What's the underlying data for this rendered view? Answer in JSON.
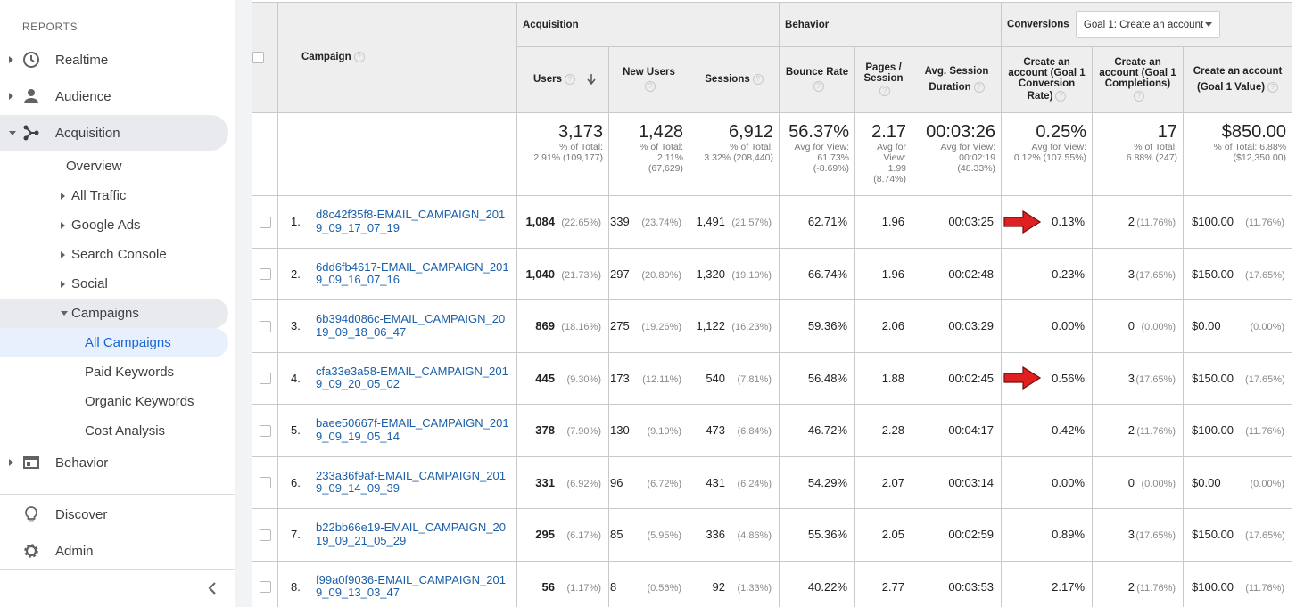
{
  "sidebar": {
    "section_label": "REPORTS",
    "top_items": [
      {
        "label": "Realtime",
        "icon": "clock-icon"
      },
      {
        "label": "Audience",
        "icon": "person-icon"
      },
      {
        "label": "Acquisition",
        "icon": "acquisition-icon"
      }
    ],
    "acquisition_sub": {
      "overview": "Overview",
      "all_traffic": "All Traffic",
      "google_ads": "Google Ads",
      "search_console": "Search Console",
      "social": "Social",
      "campaigns": "Campaigns",
      "campaign_children": [
        "All Campaigns",
        "Paid Keywords",
        "Organic Keywords",
        "Cost Analysis"
      ]
    },
    "behavior": {
      "label": "Behavior",
      "icon": "browser-window-icon"
    },
    "discover": {
      "label": "Discover",
      "icon": "lightbulb-icon"
    },
    "admin": {
      "label": "Admin",
      "icon": "gear-icon"
    }
  },
  "table": {
    "groups": {
      "acquisition": "Acquisition",
      "behavior": "Behavior",
      "conversions": "Conversions",
      "goal_select": "Goal 1: Create an account"
    },
    "columns": {
      "campaign": "Campaign",
      "users": "Users",
      "new_users": "New Users",
      "sessions": "Sessions",
      "bounce_rate": "Bounce Rate",
      "pages_session_1": "Pages /",
      "pages_session_2": "Session",
      "avg_session_1": "Avg. Session",
      "avg_session_2": "Duration",
      "conv_rate_1": "Create an",
      "conv_rate_2": "account (Goal 1",
      "conv_rate_3": "Conversion",
      "conv_rate_4": "Rate)",
      "completions_1": "Create an",
      "completions_2": "account (Goal 1",
      "completions_3": "Completions)",
      "value_1": "Create an account",
      "value_2": "(Goal 1 Value)"
    },
    "totals": {
      "users": {
        "big": "3,173",
        "l1": "% of Total:",
        "l2": "2.91% (109,177)"
      },
      "new_users": {
        "big": "1,428",
        "l1": "% of Total:",
        "l2": "2.11%",
        "l3": "(67,629)"
      },
      "sessions": {
        "big": "6,912",
        "l1": "% of Total:",
        "l2": "3.32% (208,440)"
      },
      "bounce_rate": {
        "big": "56.37%",
        "l1": "Avg for View:",
        "l2": "61.73%",
        "l3": "(-8.69%)"
      },
      "pages_session": {
        "big": "2.17",
        "l1": "Avg for",
        "l2": "View:",
        "l3": "1.99",
        "l4": "(8.74%)"
      },
      "avg_duration": {
        "big": "00:03:26",
        "l1": "Avg for View:",
        "l2": "00:02:19",
        "l3": "(48.33%)"
      },
      "conv_rate": {
        "big": "0.25%",
        "l1": "Avg for View:",
        "l2": "0.12% (107.55%)"
      },
      "completions": {
        "big": "17",
        "l1": "% of Total:",
        "l2": "6.88% (247)"
      },
      "value": {
        "big": "$850.00",
        "l1": "% of Total: 6.88%",
        "l2": "($12,350.00)"
      }
    },
    "rows": [
      {
        "idx": "1.",
        "campaign": "d8c42f35f8-EMAIL_CAMPAIGN_2019_09_17_07_19",
        "users": "1,084",
        "users_pct": "(22.65%)",
        "new_users": "339",
        "new_users_pct": "(23.74%)",
        "sessions": "1,491",
        "sessions_pct": "(21.57%)",
        "bounce": "62.71%",
        "pages": "1.96",
        "duration": "00:03:25",
        "conv": "0.13%",
        "comp": "2",
        "comp_pct": "(11.76%)",
        "value": "$100.00",
        "value_pct": "(11.76%)",
        "arrow": true
      },
      {
        "idx": "2.",
        "campaign": "6dd6fb4617-EMAIL_CAMPAIGN_2019_09_16_07_16",
        "users": "1,040",
        "users_pct": "(21.73%)",
        "new_users": "297",
        "new_users_pct": "(20.80%)",
        "sessions": "1,320",
        "sessions_pct": "(19.10%)",
        "bounce": "66.74%",
        "pages": "1.96",
        "duration": "00:02:48",
        "conv": "0.23%",
        "comp": "3",
        "comp_pct": "(17.65%)",
        "value": "$150.00",
        "value_pct": "(17.65%)",
        "arrow": false
      },
      {
        "idx": "3.",
        "campaign": "6b394d086c-EMAIL_CAMPAIGN_2019_09_18_06_47",
        "users": "869",
        "users_pct": "(18.16%)",
        "new_users": "275",
        "new_users_pct": "(19.26%)",
        "sessions": "1,122",
        "sessions_pct": "(16.23%)",
        "bounce": "59.36%",
        "pages": "2.06",
        "duration": "00:03:29",
        "conv": "0.00%",
        "comp": "0",
        "comp_pct": "(0.00%)",
        "value": "$0.00",
        "value_pct": "(0.00%)",
        "arrow": false
      },
      {
        "idx": "4.",
        "campaign": "cfa33e3a58-EMAIL_CAMPAIGN_2019_09_20_05_02",
        "users": "445",
        "users_pct": "(9.30%)",
        "new_users": "173",
        "new_users_pct": "(12.11%)",
        "sessions": "540",
        "sessions_pct": "(7.81%)",
        "bounce": "56.48%",
        "pages": "1.88",
        "duration": "00:02:45",
        "conv": "0.56%",
        "comp": "3",
        "comp_pct": "(17.65%)",
        "value": "$150.00",
        "value_pct": "(17.65%)",
        "arrow": true
      },
      {
        "idx": "5.",
        "campaign": "baee50667f-EMAIL_CAMPAIGN_2019_09_19_05_14",
        "users": "378",
        "users_pct": "(7.90%)",
        "new_users": "130",
        "new_users_pct": "(9.10%)",
        "sessions": "473",
        "sessions_pct": "(6.84%)",
        "bounce": "46.72%",
        "pages": "2.28",
        "duration": "00:04:17",
        "conv": "0.42%",
        "comp": "2",
        "comp_pct": "(11.76%)",
        "value": "$100.00",
        "value_pct": "(11.76%)",
        "arrow": false
      },
      {
        "idx": "6.",
        "campaign": "233a36f9af-EMAIL_CAMPAIGN_2019_09_14_09_39",
        "users": "331",
        "users_pct": "(6.92%)",
        "new_users": "96",
        "new_users_pct": "(6.72%)",
        "sessions": "431",
        "sessions_pct": "(6.24%)",
        "bounce": "54.29%",
        "pages": "2.07",
        "duration": "00:03:14",
        "conv": "0.00%",
        "comp": "0",
        "comp_pct": "(0.00%)",
        "value": "$0.00",
        "value_pct": "(0.00%)",
        "arrow": false
      },
      {
        "idx": "7.",
        "campaign": "b22bb66e19-EMAIL_CAMPAIGN_2019_09_21_05_29",
        "users": "295",
        "users_pct": "(6.17%)",
        "new_users": "85",
        "new_users_pct": "(5.95%)",
        "sessions": "336",
        "sessions_pct": "(4.86%)",
        "bounce": "55.36%",
        "pages": "2.05",
        "duration": "00:02:59",
        "conv": "0.89%",
        "comp": "3",
        "comp_pct": "(17.65%)",
        "value": "$150.00",
        "value_pct": "(17.65%)",
        "arrow": false
      },
      {
        "idx": "8.",
        "campaign": "f99a0f9036-EMAIL_CAMPAIGN_2019_09_13_03_47",
        "users": "56",
        "users_pct": "(1.17%)",
        "new_users": "8",
        "new_users_pct": "(0.56%)",
        "sessions": "92",
        "sessions_pct": "(1.33%)",
        "bounce": "40.22%",
        "pages": "2.77",
        "duration": "00:03:53",
        "conv": "2.17%",
        "comp": "2",
        "comp_pct": "(11.76%)",
        "value": "$100.00",
        "value_pct": "(11.76%)",
        "arrow": false
      }
    ],
    "colors": {
      "link": "#1a5fa8",
      "header_bg": "#eeeeee",
      "arrow": "#e02020",
      "selected_nav": "#e8f0fe"
    }
  }
}
